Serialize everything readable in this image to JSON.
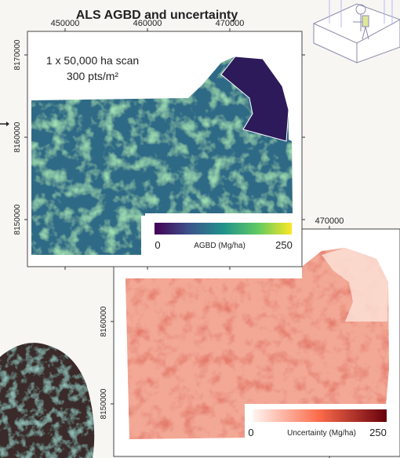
{
  "title": "ALS AGBD and uncertainty",
  "agbd_map": {
    "xticks": [
      450000,
      460000,
      470000
    ],
    "yticks": [
      8170000,
      8160000,
      8150000
    ],
    "annotation": [
      "1 x 50,000 ha scan",
      "300 pts/m²"
    ],
    "colorbar": {
      "min": 0,
      "label": "AGBD (Mg/ha)",
      "max": 250
    }
  },
  "uncertainty_map": {
    "xticks": [
      470000
    ],
    "yticks": [
      8160000,
      8150000
    ],
    "colorbar": {
      "min": 0,
      "label": "Uncertainty (Mg/ha)",
      "max": 250
    }
  }
}
